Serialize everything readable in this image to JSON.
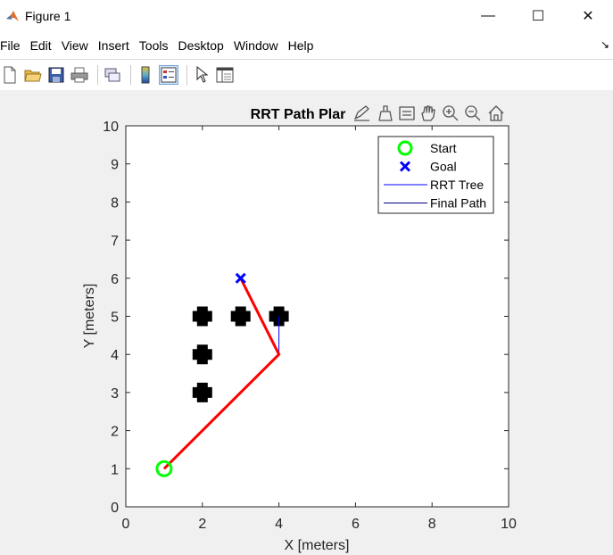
{
  "window": {
    "title": "Figure 1",
    "controls": {
      "minimize": "—",
      "maximize": "☐",
      "close": "✕"
    }
  },
  "menu": {
    "items": [
      "File",
      "Edit",
      "View",
      "Insert",
      "Tools",
      "Desktop",
      "Window",
      "Help"
    ],
    "overflow": "↘"
  },
  "toolbar": {
    "icons": [
      "new-figure-icon",
      "open-file-icon",
      "save-icon",
      "print-icon",
      "link-plot-icon",
      "colorbar-icon",
      "legend-icon",
      "pointer-icon",
      "property-editor-icon"
    ]
  },
  "axes_toolbar": {
    "icons": [
      "edit-plot-icon",
      "brush-icon",
      "data-tip-icon",
      "pan-icon",
      "zoom-in-icon",
      "zoom-out-icon",
      "home-icon"
    ]
  },
  "chart_data": {
    "type": "scatter",
    "title": "RRT Path Plar",
    "xlabel": "X [meters]",
    "ylabel": "Y [meters]",
    "xlim": [
      0,
      10
    ],
    "ylim": [
      0,
      10
    ],
    "xticks": [
      0,
      2,
      4,
      6,
      8,
      10
    ],
    "yticks": [
      0,
      1,
      2,
      3,
      4,
      5,
      6,
      7,
      8,
      9,
      10
    ],
    "grid": false,
    "legend_position": "top-right",
    "obstacles": [
      [
        2,
        5
      ],
      [
        3,
        5
      ],
      [
        4,
        5
      ],
      [
        2,
        4
      ],
      [
        2,
        3
      ]
    ],
    "start": {
      "name": "Start",
      "x": 1,
      "y": 1,
      "color": "#00ff00"
    },
    "goal": {
      "name": "Goal",
      "x": 3,
      "y": 6,
      "color": "#0000ff"
    },
    "tree": {
      "name": "RRT Tree",
      "color": "#0000ff",
      "segments": [
        [
          [
            4,
            4
          ],
          [
            4,
            5
          ]
        ]
      ]
    },
    "final_path": {
      "name": "Final Path",
      "color": "#ff0000",
      "points": [
        [
          1,
          1
        ],
        [
          4,
          4
        ],
        [
          3,
          6
        ]
      ]
    },
    "legend": [
      {
        "label": "Start",
        "marker": "circle",
        "color": "#00ff00"
      },
      {
        "label": "Goal",
        "marker": "x",
        "color": "#0000ff"
      },
      {
        "label": "RRT Tree",
        "marker": "line",
        "color": "#0000ff"
      },
      {
        "label": "Final Path",
        "marker": "line",
        "color": "#000080"
      }
    ]
  }
}
